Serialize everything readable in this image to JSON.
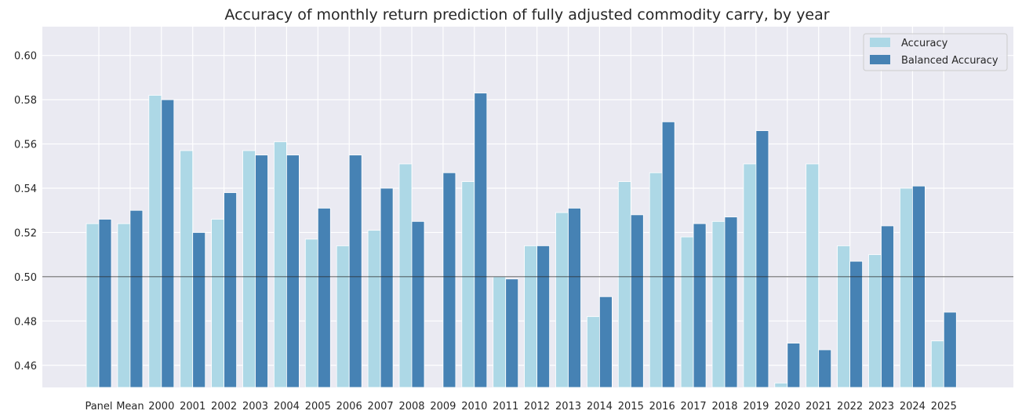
{
  "chart_data": {
    "type": "bar",
    "title": "Accuracy of monthly return prediction of fully adjusted commodity carry, by year",
    "xlabel": "",
    "ylabel": "",
    "categories": [
      "Panel",
      "Mean",
      "2000",
      "2001",
      "2002",
      "2003",
      "2004",
      "2005",
      "2006",
      "2007",
      "2008",
      "2009",
      "2010",
      "2011",
      "2012",
      "2013",
      "2014",
      "2015",
      "2016",
      "2017",
      "2018",
      "2019",
      "2020",
      "2021",
      "2022",
      "2023",
      "2024",
      "2025"
    ],
    "series": [
      {
        "name": "Accuracy",
        "color": "#add8e6",
        "values": [
          0.524,
          0.524,
          0.582,
          0.557,
          0.526,
          0.557,
          0.561,
          0.517,
          0.514,
          0.521,
          0.551,
          0.449,
          0.543,
          0.5,
          0.514,
          0.529,
          0.482,
          0.543,
          0.547,
          0.518,
          0.525,
          0.551,
          0.452,
          0.551,
          0.514,
          0.51,
          0.54,
          0.471
        ]
      },
      {
        "name": "Balanced Accuracy",
        "color": "#4682b4",
        "values": [
          0.526,
          0.53,
          0.58,
          0.52,
          0.538,
          0.555,
          0.555,
          0.531,
          0.555,
          0.54,
          0.525,
          0.547,
          0.583,
          0.499,
          0.514,
          0.531,
          0.491,
          0.528,
          0.57,
          0.524,
          0.527,
          0.566,
          0.47,
          0.467,
          0.507,
          0.523,
          0.541,
          0.484
        ]
      }
    ],
    "ylim": [
      0.45,
      0.613
    ],
    "yticks": [
      0.46,
      0.48,
      0.5,
      0.52,
      0.54,
      0.56,
      0.58,
      0.6
    ],
    "ytick_labels": [
      "0.46",
      "0.48",
      "0.50",
      "0.52",
      "0.54",
      "0.56",
      "0.58",
      "0.60"
    ],
    "reference_line": 0.5,
    "grid": true,
    "legend_position": "top-right"
  },
  "colors": {
    "plot_background": "#eaeaf2",
    "grid": "#ffffff",
    "reference_line": "#262626",
    "legend_background": "#eaeaf2",
    "legend_border": "#cccccc"
  }
}
